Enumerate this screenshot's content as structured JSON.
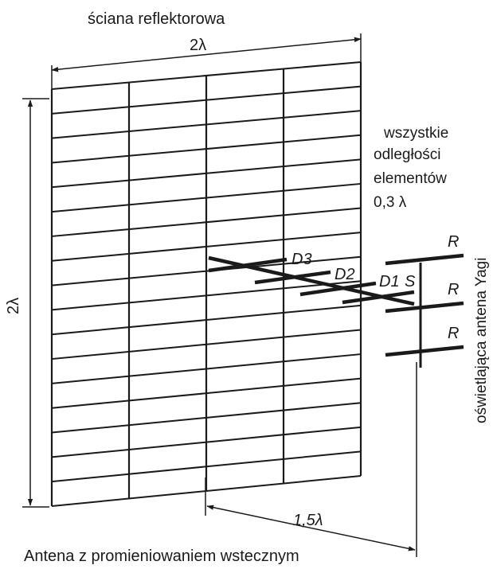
{
  "title_top": "ściana reflektorowa",
  "caption": "Antena z promieniowaniem wstecznym",
  "dimensions": {
    "width": "2λ",
    "height": "2λ",
    "distance": "1,5λ"
  },
  "note": {
    "line1": "wszystkie",
    "line2": "odległości",
    "line3": "elementów",
    "line4": "0,3 λ"
  },
  "side_label": "oświetlająca antena Yagi",
  "elements": {
    "d3": "D3",
    "d2": "D2",
    "d1": "D1",
    "s": "S",
    "r": "R"
  }
}
